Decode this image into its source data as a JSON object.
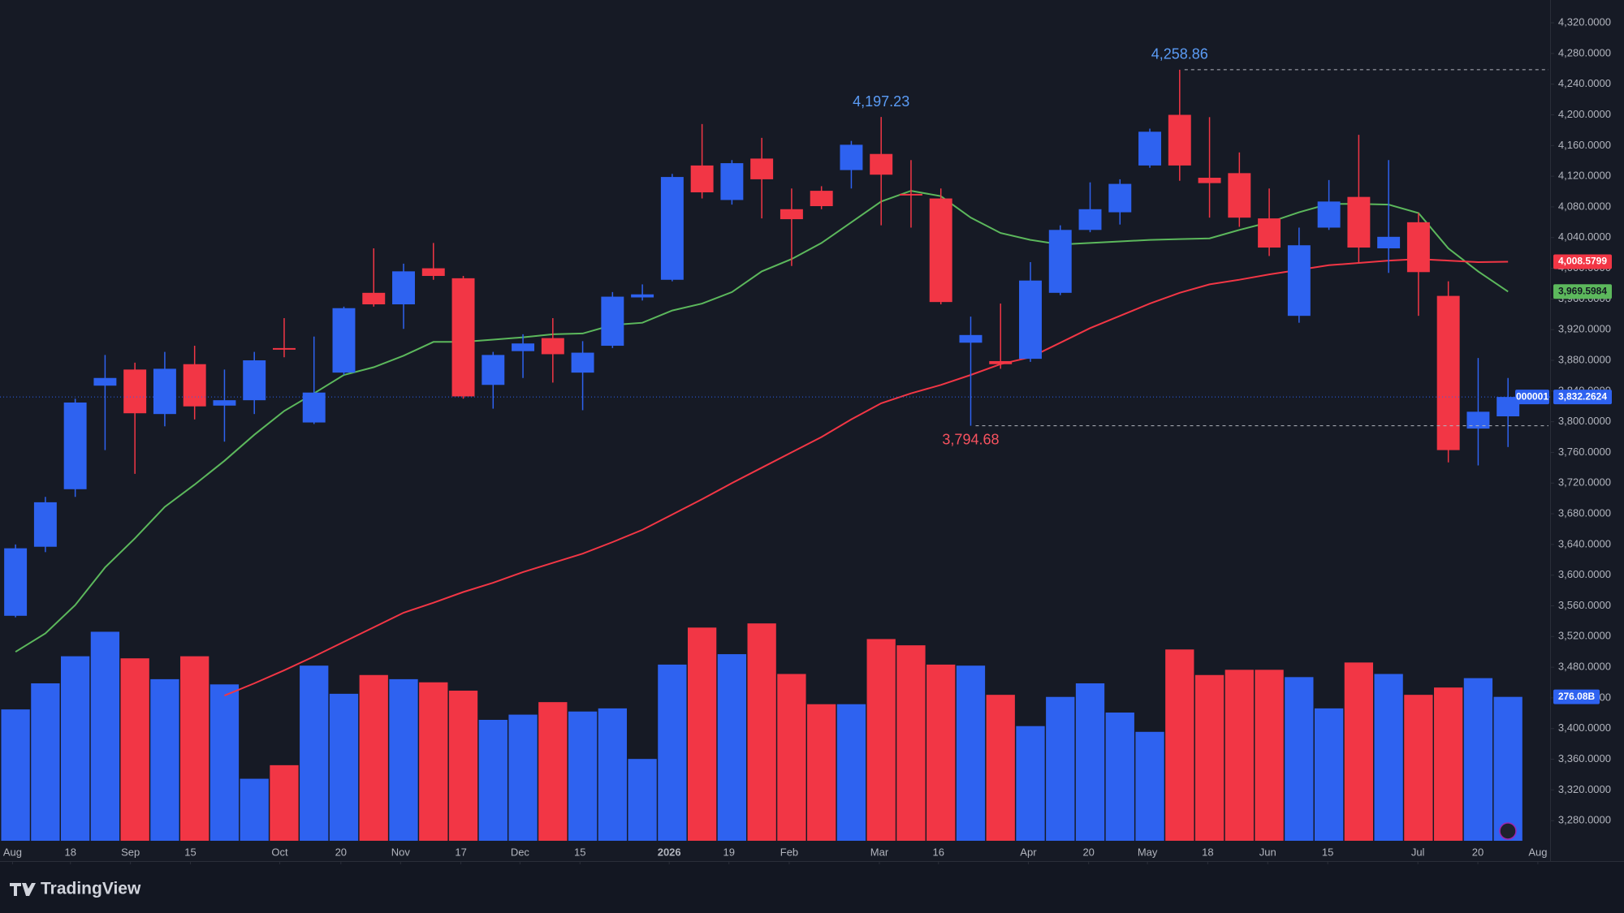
{
  "chart_data": {
    "type": "candlestick",
    "candles": {
      "open": [
        3547,
        3637,
        3712,
        3847,
        3868,
        3810,
        3875,
        3821,
        3828,
        3896,
        3799,
        3864,
        3968,
        3953,
        4000,
        3987,
        3848,
        3892,
        3909,
        3864,
        3899,
        3962,
        3985,
        4134,
        4089,
        4143,
        4077,
        4101,
        4128,
        4149,
        4097,
        4091,
        3903,
        3879,
        3882,
        3968,
        4050,
        4073,
        4134,
        4200,
        4118,
        4124,
        4065,
        3938,
        4053,
        4093,
        4026,
        4060,
        3964,
        3791,
        3807
      ],
      "high": [
        3640,
        3702,
        3830,
        3887,
        3877,
        3891,
        3899,
        3868,
        3891,
        3935,
        3911,
        3950,
        4026,
        4006,
        4033,
        3990,
        3891,
        3914,
        3935,
        3905,
        3969,
        3979,
        4123,
        4188,
        4141,
        4170,
        4104,
        4107,
        4166,
        4197.23,
        4141,
        4104,
        3937,
        3954,
        4008,
        4056,
        4112,
        4116,
        4182,
        4258.86,
        4197,
        4151,
        4104,
        4053,
        4115,
        4174,
        4141,
        4072,
        3983,
        3883,
        3857
      ],
      "low": [
        3545,
        3630,
        3702,
        3763,
        3732,
        3794,
        3803,
        3774,
        3810,
        3884,
        3797,
        3861,
        3950,
        3921,
        3985,
        3830,
        3817,
        3857,
        3851,
        3815,
        3896,
        3958,
        3983,
        4091,
        4083,
        4065,
        4003,
        4077,
        4104,
        4056,
        4053,
        3953,
        3794.68,
        3869,
        3878,
        3965,
        4047,
        4057,
        4131,
        4114,
        4066,
        4054,
        4016,
        3929,
        4050,
        4008,
        3994,
        3938,
        3747,
        3743,
        3767
      ],
      "close": [
        3635,
        3695,
        3825,
        3857,
        3811,
        3869,
        3820,
        3828,
        3880,
        3894,
        3838,
        3948,
        3953,
        3996,
        3990,
        3833,
        3887,
        3902,
        3888,
        3890,
        3963,
        3966,
        4119,
        4099,
        4137,
        4116,
        4064,
        4081,
        4161,
        4122,
        4095,
        3956,
        3913,
        3875,
        3984,
        4050,
        4077,
        4110,
        4178,
        4134,
        4111,
        4066,
        4027,
        4030,
        4087,
        4027,
        4041,
        3995,
        3763,
        3813,
        3832.2624
      ]
    },
    "up_color": "#2e62f0",
    "down_color": "#f23645",
    "volume": {
      "values": [
        252,
        302,
        354,
        401,
        350,
        310,
        354,
        300,
        119,
        145,
        336,
        282,
        318,
        310,
        304,
        288,
        232,
        242,
        266,
        248,
        254,
        157,
        338,
        409,
        358,
        417,
        320,
        262,
        262,
        387,
        375,
        338,
        336,
        280,
        220,
        276,
        302,
        246,
        209,
        367,
        318,
        328,
        328,
        314,
        254,
        342,
        320,
        280,
        294,
        312,
        276.08
      ],
      "last_label": "276.08B",
      "ylim": [
        0,
        1613
      ]
    },
    "series": [
      {
        "color": "#5cb85c",
        "last_label": "3,969.5984",
        "values": [
          3500,
          3524,
          3561,
          3610,
          3648,
          3689,
          3718,
          3749,
          3783,
          3814,
          3837,
          3861,
          3871,
          3886,
          3904,
          3904,
          3907,
          3910,
          3914,
          3915,
          3926,
          3929,
          3945,
          3954,
          3969,
          3996,
          4012,
          4033,
          4060,
          4087,
          4101,
          4094,
          4066,
          4046,
          4037,
          4031,
          4033,
          4035,
          4037,
          4038,
          4039,
          4050,
          4060,
          4073,
          4084,
          4084,
          4083,
          4072,
          4026,
          3996,
          3969.5984
        ]
      },
      {
        "color": "#f23645",
        "last_label": "4,008.5799",
        "values": [
          null,
          null,
          null,
          null,
          null,
          null,
          null,
          3443,
          3459,
          3476,
          3494,
          3513,
          3532,
          3551,
          3564,
          3578,
          3590,
          3604,
          3616,
          3628,
          3643,
          3659,
          3679,
          3699,
          3720,
          3740,
          3760,
          3780,
          3803,
          3824,
          3837,
          3848,
          3861,
          3875,
          3884,
          3903,
          3922,
          3938,
          3954,
          3968,
          3979,
          3985,
          3992,
          3998,
          4004,
          4007,
          4010,
          4012,
          4010,
          4008,
          4008.5799
        ]
      }
    ],
    "last_price": {
      "label": "3,832.2624",
      "symbol": "000001"
    },
    "annotations": [
      {
        "value": 4197.23,
        "label": "4,197.23",
        "kind": "high"
      },
      {
        "value": 4258.86,
        "label": "4,258.86",
        "kind": "high"
      },
      {
        "value": 3794.68,
        "label": "3,794.68",
        "kind": "low"
      }
    ],
    "xlim": [
      -0.52,
      51.41
    ],
    "xticks": [
      {
        "value": -0.1,
        "label": "Aug"
      },
      {
        "value": 1.84,
        "label": "18"
      },
      {
        "value": 3.85,
        "label": "Sep"
      },
      {
        "value": 5.86,
        "label": "15"
      },
      {
        "value": 8.85,
        "label": "Oct"
      },
      {
        "value": 10.9,
        "label": "20"
      },
      {
        "value": 12.9,
        "label": "Nov"
      },
      {
        "value": 14.92,
        "label": "17"
      },
      {
        "value": 16.9,
        "label": "Dec"
      },
      {
        "value": 18.91,
        "label": "15"
      },
      {
        "value": 21.9,
        "label": "2026"
      },
      {
        "value": 23.9,
        "label": "19"
      },
      {
        "value": 25.92,
        "label": "Feb"
      },
      {
        "value": 28.94,
        "label": "Mar"
      },
      {
        "value": 30.92,
        "label": "16"
      },
      {
        "value": 33.93,
        "label": "Apr"
      },
      {
        "value": 35.95,
        "label": "20"
      },
      {
        "value": 37.92,
        "label": "May"
      },
      {
        "value": 39.94,
        "label": "18"
      },
      {
        "value": 41.95,
        "label": "Jun"
      },
      {
        "value": 43.96,
        "label": "15"
      },
      {
        "value": 46.98,
        "label": "Jul"
      },
      {
        "value": 48.99,
        "label": "20"
      },
      {
        "value": 51.0,
        "label": "Aug"
      }
    ],
    "ylim": [
      3227.3,
      4349.7
    ],
    "yticks": [
      {
        "value": 4320,
        "label": "4,320.0000"
      },
      {
        "value": 4280,
        "label": "4,280.0000"
      },
      {
        "value": 4240,
        "label": "4,240.0000"
      },
      {
        "value": 4200,
        "label": "4,200.0000"
      },
      {
        "value": 4160,
        "label": "4,160.0000"
      },
      {
        "value": 4120,
        "label": "4,120.0000"
      },
      {
        "value": 4080,
        "label": "4,080.0000"
      },
      {
        "value": 4040,
        "label": "4,040.0000"
      },
      {
        "value": 4000,
        "label": "4,000.0000"
      },
      {
        "value": 3960,
        "label": "3,960.0000"
      },
      {
        "value": 3920,
        "label": "3,920.0000"
      },
      {
        "value": 3880,
        "label": "3,880.0000"
      },
      {
        "value": 3840,
        "label": "3,840.0000"
      },
      {
        "value": 3800,
        "label": "3,800.0000"
      },
      {
        "value": 3760,
        "label": "3,760.0000"
      },
      {
        "value": 3720,
        "label": "3,720.0000"
      },
      {
        "value": 3680,
        "label": "3,680.0000"
      },
      {
        "value": 3640,
        "label": "3,640.0000"
      },
      {
        "value": 3600,
        "label": "3,600.0000"
      },
      {
        "value": 3560,
        "label": "3,560.0000"
      },
      {
        "value": 3520,
        "label": "3,520.0000"
      },
      {
        "value": 3480,
        "label": "3,480.0000"
      },
      {
        "value": 3440,
        "label": "3,440.0000"
      },
      {
        "value": 3400,
        "label": "3,400.0000"
      },
      {
        "value": 3360,
        "label": "3,360.0000"
      },
      {
        "value": 3320,
        "label": "3,320.0000"
      },
      {
        "value": 3280,
        "label": "3,280.0000"
      }
    ],
    "grid": false,
    "branding": "TradingView"
  }
}
